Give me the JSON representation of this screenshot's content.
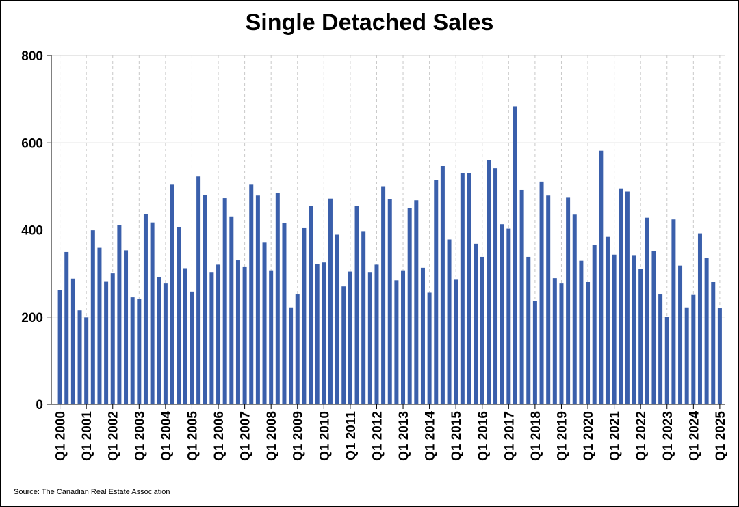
{
  "chart_data": {
    "type": "bar",
    "title": "Single Detached Sales",
    "xlabel": "",
    "ylabel": "",
    "ylim": [
      0,
      800
    ],
    "y_ticks": [
      0,
      200,
      400,
      600,
      800
    ],
    "grid": true,
    "bar_color": "#3A5FAB",
    "start_year": 2000,
    "x_tick_labels": [
      "Q1 2000",
      "Q1 2001",
      "Q1 2002",
      "Q1 2003",
      "Q1 2004",
      "Q1 2005",
      "Q1 2006",
      "Q1 2007",
      "Q1 2008",
      "Q1 2009",
      "Q1 2010",
      "Q1 2011",
      "Q1 2012",
      "Q1 2013",
      "Q1 2014",
      "Q1 2015",
      "Q1 2016",
      "Q1 2017",
      "Q1 2018",
      "Q1 2019",
      "Q1 2020",
      "Q1 2021",
      "Q1 2022",
      "Q1 2023",
      "Q1 2024",
      "Q1 2025"
    ],
    "values": [
      262,
      349,
      288,
      215,
      199,
      399,
      359,
      282,
      300,
      411,
      353,
      245,
      242,
      436,
      417,
      291,
      278,
      504,
      407,
      312,
      258,
      523,
      480,
      303,
      320,
      473,
      431,
      330,
      316,
      504,
      479,
      372,
      307,
      485,
      415,
      222,
      253,
      404,
      455,
      322,
      325,
      472,
      389,
      270,
      304,
      455,
      397,
      303,
      320,
      499,
      471,
      284,
      307,
      451,
      468,
      313,
      257,
      514,
      546,
      378,
      287,
      530,
      530,
      368,
      338,
      561,
      542,
      413,
      403,
      683,
      492,
      338,
      237,
      511,
      479,
      289,
      278,
      474,
      435,
      329,
      280,
      365,
      582,
      384,
      343,
      494,
      488,
      342,
      311,
      428,
      351,
      253,
      201,
      424,
      318,
      222,
      252,
      392,
      336,
      280,
      220
    ]
  },
  "source": "Source: The Canadian Real Estate Association"
}
